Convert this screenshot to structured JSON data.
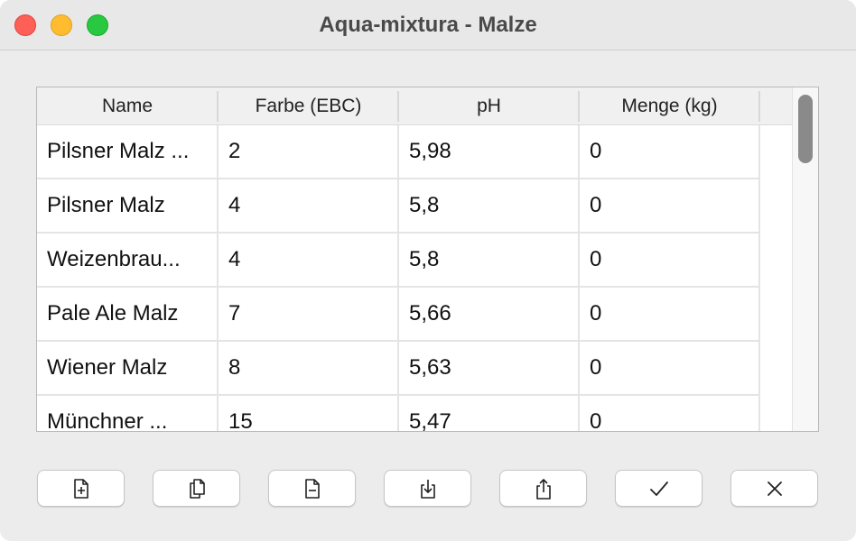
{
  "window": {
    "title": "Aqua-mixtura - Malze"
  },
  "table": {
    "columns": [
      "Name",
      "Farbe (EBC)",
      "pH",
      "Menge (kg)"
    ],
    "rows": [
      [
        "Pilsner Malz ...",
        "2",
        "5,98",
        "0"
      ],
      [
        "Pilsner Malz",
        "4",
        "5,8",
        "0"
      ],
      [
        "Weizenbrau...",
        "4",
        "5,8",
        "0"
      ],
      [
        "Pale Ale Malz",
        "7",
        "5,66",
        "0"
      ],
      [
        "Wiener Malz",
        "8",
        "5,63",
        "0"
      ],
      [
        "Münchner ...",
        "15",
        "5,47",
        "0"
      ]
    ]
  },
  "toolbar": {
    "buttons": [
      {
        "icon": "add-document-icon"
      },
      {
        "icon": "copy-documents-icon"
      },
      {
        "icon": "remove-document-icon"
      },
      {
        "icon": "download-icon"
      },
      {
        "icon": "share-upload-icon"
      },
      {
        "icon": "checkmark-icon"
      },
      {
        "icon": "close-x-icon"
      }
    ]
  },
  "colors": {
    "traffic_close": "#fe5f57",
    "traffic_minimize": "#febc2e",
    "traffic_zoom": "#28c840"
  }
}
